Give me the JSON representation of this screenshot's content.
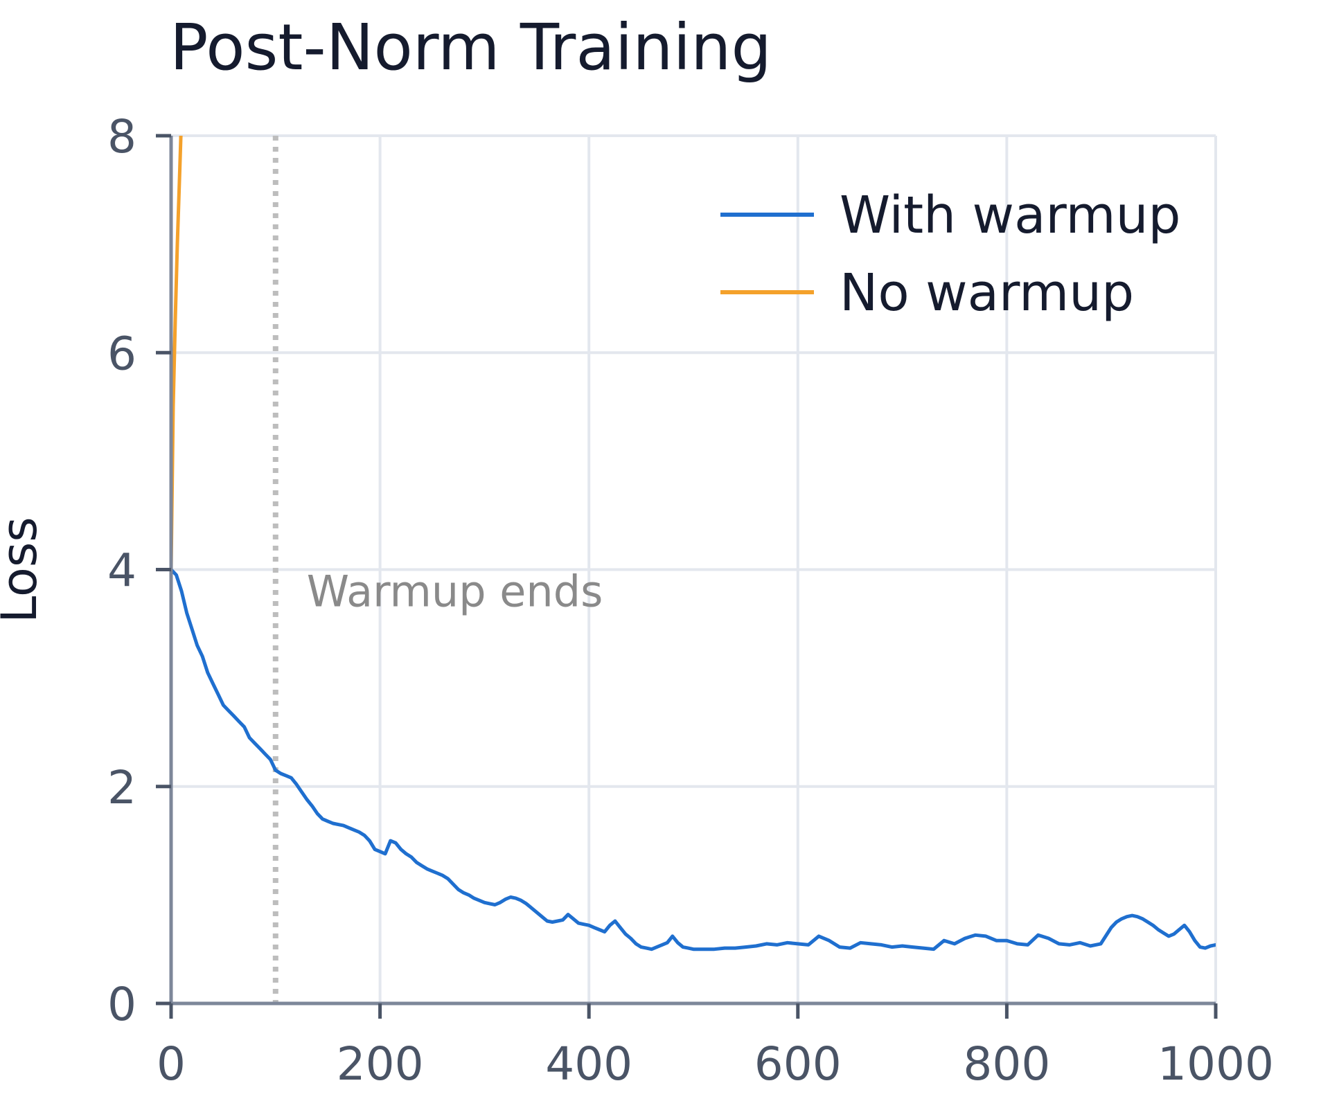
{
  "chart_data": {
    "type": "line",
    "title": "Post-Norm Training",
    "xlabel": "",
    "ylabel": "Loss",
    "xlim": [
      0,
      1000
    ],
    "ylim": [
      0,
      8
    ],
    "xticks": [
      0,
      200,
      400,
      600,
      800,
      1000
    ],
    "yticks": [
      0,
      2,
      4,
      6,
      8
    ],
    "grid": true,
    "legend_position": "top-right",
    "annotations": [
      {
        "text": "Warmup ends",
        "x": 100,
        "y": 3.65,
        "vline_x": 100
      }
    ],
    "series": [
      {
        "name": "With warmup",
        "color": "#1f6fcf",
        "x": [
          0,
          5,
          10,
          15,
          20,
          25,
          30,
          35,
          40,
          45,
          50,
          55,
          60,
          65,
          70,
          75,
          80,
          85,
          90,
          95,
          100,
          105,
          110,
          115,
          120,
          125,
          130,
          135,
          140,
          145,
          150,
          155,
          160,
          165,
          170,
          175,
          180,
          185,
          190,
          195,
          200,
          205,
          210,
          215,
          220,
          225,
          230,
          235,
          240,
          245,
          250,
          255,
          260,
          265,
          270,
          275,
          280,
          285,
          290,
          295,
          300,
          305,
          310,
          315,
          320,
          325,
          330,
          335,
          340,
          345,
          350,
          355,
          360,
          365,
          370,
          375,
          380,
          385,
          390,
          395,
          400,
          405,
          410,
          415,
          420,
          425,
          430,
          435,
          440,
          445,
          450,
          455,
          460,
          465,
          470,
          475,
          480,
          485,
          490,
          495,
          500,
          510,
          520,
          530,
          540,
          550,
          560,
          570,
          580,
          590,
          600,
          610,
          620,
          630,
          640,
          650,
          660,
          670,
          680,
          690,
          700,
          710,
          720,
          730,
          740,
          750,
          760,
          770,
          780,
          790,
          800,
          810,
          820,
          830,
          840,
          850,
          860,
          870,
          880,
          890,
          900,
          905,
          910,
          915,
          920,
          925,
          930,
          935,
          940,
          945,
          950,
          955,
          960,
          965,
          970,
          975,
          980,
          985,
          990,
          995,
          1000
        ],
        "y": [
          4.0,
          3.95,
          3.8,
          3.6,
          3.45,
          3.3,
          3.2,
          3.05,
          2.95,
          2.85,
          2.75,
          2.7,
          2.65,
          2.6,
          2.55,
          2.45,
          2.4,
          2.35,
          2.3,
          2.25,
          2.15,
          2.12,
          2.1,
          2.08,
          2.02,
          1.95,
          1.88,
          1.82,
          1.75,
          1.7,
          1.68,
          1.66,
          1.65,
          1.64,
          1.62,
          1.6,
          1.58,
          1.55,
          1.5,
          1.42,
          1.4,
          1.38,
          1.5,
          1.48,
          1.42,
          1.38,
          1.35,
          1.3,
          1.27,
          1.24,
          1.22,
          1.2,
          1.18,
          1.15,
          1.1,
          1.05,
          1.02,
          1.0,
          0.97,
          0.95,
          0.93,
          0.92,
          0.91,
          0.93,
          0.96,
          0.98,
          0.97,
          0.95,
          0.92,
          0.88,
          0.84,
          0.8,
          0.76,
          0.75,
          0.76,
          0.77,
          0.82,
          0.78,
          0.74,
          0.73,
          0.72,
          0.7,
          0.68,
          0.66,
          0.72,
          0.76,
          0.7,
          0.64,
          0.6,
          0.55,
          0.52,
          0.51,
          0.5,
          0.52,
          0.54,
          0.56,
          0.62,
          0.56,
          0.52,
          0.51,
          0.5,
          0.5,
          0.5,
          0.51,
          0.51,
          0.52,
          0.53,
          0.55,
          0.54,
          0.56,
          0.55,
          0.54,
          0.62,
          0.58,
          0.52,
          0.51,
          0.56,
          0.55,
          0.54,
          0.52,
          0.53,
          0.52,
          0.51,
          0.5,
          0.58,
          0.55,
          0.6,
          0.63,
          0.62,
          0.58,
          0.58,
          0.55,
          0.54,
          0.63,
          0.6,
          0.55,
          0.54,
          0.56,
          0.53,
          0.55,
          0.7,
          0.75,
          0.78,
          0.8,
          0.81,
          0.8,
          0.78,
          0.75,
          0.72,
          0.68,
          0.65,
          0.62,
          0.64,
          0.68,
          0.72,
          0.66,
          0.58,
          0.52,
          0.51,
          0.53,
          0.54
        ]
      },
      {
        "name": "No warmup",
        "color": "#f4a12b",
        "x": [
          0,
          2,
          4,
          6,
          8,
          10,
          12
        ],
        "y": [
          4.0,
          5.5,
          6.3,
          7.0,
          7.6,
          8.2,
          9.0
        ]
      }
    ]
  }
}
